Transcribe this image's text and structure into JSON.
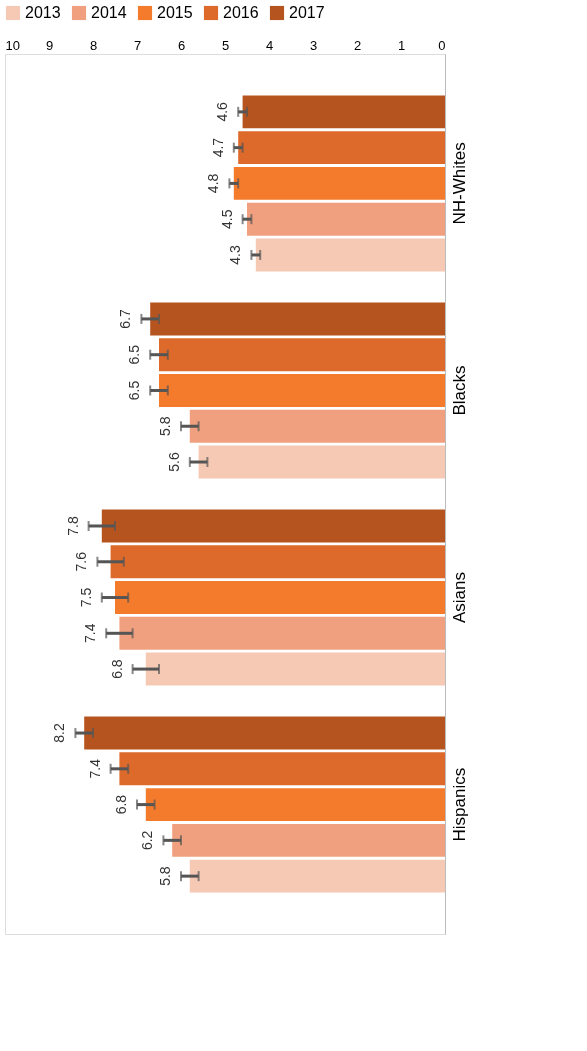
{
  "chart_data": {
    "type": "bar",
    "orientation": "horizontal",
    "categories": [
      "NH-Whites",
      "Blacks",
      "Asians",
      "Hispanics"
    ],
    "series": [
      {
        "name": "2013",
        "color": "#f6c9b4",
        "values": [
          4.3,
          5.6,
          6.8,
          5.8
        ],
        "errors": [
          0.1,
          0.2,
          0.3,
          0.2
        ]
      },
      {
        "name": "2014",
        "color": "#f0a07e",
        "values": [
          4.5,
          5.8,
          7.4,
          6.2
        ],
        "errors": [
          0.1,
          0.2,
          0.3,
          0.2
        ]
      },
      {
        "name": "2015",
        "color": "#f47a2c",
        "values": [
          4.8,
          6.5,
          7.5,
          6.8
        ],
        "errors": [
          0.1,
          0.2,
          0.3,
          0.2
        ]
      },
      {
        "name": "2016",
        "color": "#dd6a2a",
        "values": [
          4.7,
          6.5,
          7.6,
          7.4
        ],
        "errors": [
          0.1,
          0.2,
          0.3,
          0.2
        ]
      },
      {
        "name": "2017",
        "color": "#b5541f",
        "values": [
          4.6,
          6.7,
          7.8,
          8.2
        ],
        "errors": [
          0.1,
          0.2,
          0.3,
          0.2
        ]
      }
    ],
    "xlim": [
      10,
      0
    ],
    "xticks": [
      0,
      1,
      2,
      3,
      4,
      5,
      6,
      7,
      8,
      9,
      10
    ],
    "data_labels": true,
    "legend": "top",
    "grid": false
  }
}
